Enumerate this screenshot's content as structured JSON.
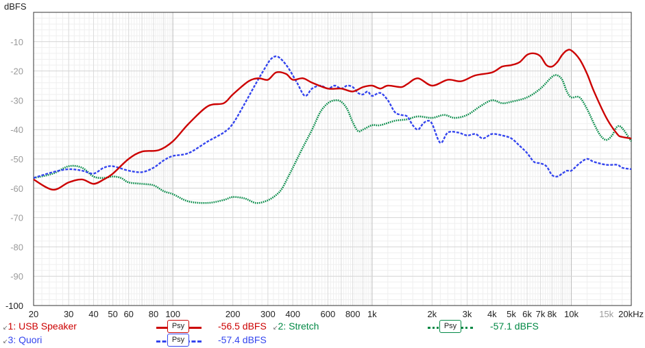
{
  "chart_data": {
    "type": "line",
    "ylabel": "dBFS",
    "ylim": [
      -100,
      0
    ],
    "xlim": [
      20,
      20000
    ],
    "x_scale": "log",
    "grid": true,
    "y_ticks": [
      -10,
      -20,
      -30,
      -40,
      -50,
      -60,
      -70,
      -80,
      -90,
      -100
    ],
    "x_ticks": [
      {
        "value": 20,
        "label": "20"
      },
      {
        "value": 30,
        "label": "30"
      },
      {
        "value": 40,
        "label": "40"
      },
      {
        "value": 50,
        "label": "50"
      },
      {
        "value": 60,
        "label": "60"
      },
      {
        "value": 80,
        "label": "80"
      },
      {
        "value": 100,
        "label": "100"
      },
      {
        "value": 200,
        "label": "200"
      },
      {
        "value": 300,
        "label": "300"
      },
      {
        "value": 400,
        "label": "400"
      },
      {
        "value": 600,
        "label": "600"
      },
      {
        "value": 800,
        "label": "800"
      },
      {
        "value": 1000,
        "label": "1k"
      },
      {
        "value": 2000,
        "label": "2k"
      },
      {
        "value": 3000,
        "label": "3k"
      },
      {
        "value": 4000,
        "label": "4k"
      },
      {
        "value": 5000,
        "label": "5k"
      },
      {
        "value": 6000,
        "label": "6k"
      },
      {
        "value": 7000,
        "label": "7k"
      },
      {
        "value": 8000,
        "label": "8k"
      },
      {
        "value": 10000,
        "label": "10k"
      },
      {
        "value": 15000,
        "label": "15k"
      },
      {
        "value": 20000,
        "label": "20kHz"
      }
    ],
    "series": [
      {
        "name": "1: USB Speaker",
        "color": "#cc0000",
        "style": "solid",
        "psy": "Psy",
        "level": "-56.5 dBFS",
        "points": [
          [
            20,
            -57
          ],
          [
            25,
            -60.5
          ],
          [
            30,
            -58
          ],
          [
            35,
            -57
          ],
          [
            40,
            -58.5
          ],
          [
            45,
            -57
          ],
          [
            50,
            -55
          ],
          [
            60,
            -50
          ],
          [
            70,
            -47.5
          ],
          [
            85,
            -47
          ],
          [
            100,
            -44
          ],
          [
            120,
            -38
          ],
          [
            150,
            -32
          ],
          [
            180,
            -31
          ],
          [
            200,
            -28
          ],
          [
            240,
            -23.5
          ],
          [
            270,
            -22.5
          ],
          [
            300,
            -23
          ],
          [
            330,
            -20.5
          ],
          [
            370,
            -21
          ],
          [
            400,
            -23
          ],
          [
            450,
            -22.5
          ],
          [
            500,
            -24
          ],
          [
            600,
            -26
          ],
          [
            700,
            -26
          ],
          [
            800,
            -27
          ],
          [
            900,
            -25.5
          ],
          [
            1000,
            -25
          ],
          [
            1100,
            -26
          ],
          [
            1200,
            -25
          ],
          [
            1400,
            -25.5
          ],
          [
            1500,
            -24.5
          ],
          [
            1700,
            -22.5
          ],
          [
            2000,
            -25
          ],
          [
            2400,
            -23
          ],
          [
            2800,
            -23.5
          ],
          [
            3300,
            -21.5
          ],
          [
            4000,
            -20.5
          ],
          [
            4500,
            -18.5
          ],
          [
            5000,
            -18
          ],
          [
            5500,
            -17
          ],
          [
            6000,
            -14.5
          ],
          [
            6500,
            -14
          ],
          [
            7000,
            -15
          ],
          [
            7500,
            -18
          ],
          [
            8000,
            -18.5
          ],
          [
            8500,
            -17
          ],
          [
            9000,
            -14.5
          ],
          [
            9500,
            -13
          ],
          [
            10000,
            -13
          ],
          [
            11000,
            -16
          ],
          [
            12000,
            -21
          ],
          [
            13000,
            -27
          ],
          [
            15000,
            -36
          ],
          [
            17000,
            -41.5
          ],
          [
            18000,
            -42.5
          ],
          [
            20000,
            -43
          ]
        ]
      },
      {
        "name": "2: Stretch",
        "color": "#008844",
        "style": "dotted",
        "psy": "Psy",
        "level": "-57.1 dBFS",
        "points": [
          [
            20,
            -56.5
          ],
          [
            25,
            -55
          ],
          [
            30,
            -52.5
          ],
          [
            35,
            -53
          ],
          [
            40,
            -56
          ],
          [
            45,
            -56.5
          ],
          [
            50,
            -56
          ],
          [
            55,
            -56.5
          ],
          [
            60,
            -58
          ],
          [
            70,
            -58.5
          ],
          [
            80,
            -59
          ],
          [
            90,
            -61
          ],
          [
            100,
            -62
          ],
          [
            120,
            -64.5
          ],
          [
            150,
            -65
          ],
          [
            180,
            -64
          ],
          [
            200,
            -63
          ],
          [
            230,
            -63.5
          ],
          [
            260,
            -65
          ],
          [
            290,
            -64.5
          ],
          [
            320,
            -63
          ],
          [
            350,
            -60.5
          ],
          [
            380,
            -56
          ],
          [
            400,
            -53
          ],
          [
            450,
            -46
          ],
          [
            500,
            -40
          ],
          [
            550,
            -34
          ],
          [
            600,
            -31
          ],
          [
            650,
            -30
          ],
          [
            700,
            -30.5
          ],
          [
            750,
            -33
          ],
          [
            800,
            -37.5
          ],
          [
            850,
            -40.5
          ],
          [
            900,
            -40
          ],
          [
            1000,
            -38.5
          ],
          [
            1100,
            -38.5
          ],
          [
            1300,
            -37
          ],
          [
            1500,
            -36.5
          ],
          [
            1700,
            -35.5
          ],
          [
            2000,
            -36
          ],
          [
            2300,
            -35
          ],
          [
            2600,
            -36
          ],
          [
            3000,
            -35
          ],
          [
            3500,
            -32
          ],
          [
            4000,
            -30
          ],
          [
            4500,
            -31
          ],
          [
            5000,
            -30.5
          ],
          [
            6000,
            -29
          ],
          [
            7000,
            -26
          ],
          [
            8000,
            -22
          ],
          [
            8500,
            -21.5
          ],
          [
            9000,
            -23
          ],
          [
            9500,
            -27
          ],
          [
            10000,
            -29
          ],
          [
            11000,
            -29
          ],
          [
            12000,
            -33
          ],
          [
            13000,
            -38
          ],
          [
            14000,
            -42
          ],
          [
            15000,
            -43.5
          ],
          [
            16000,
            -42
          ],
          [
            17000,
            -39
          ],
          [
            18000,
            -39.5
          ],
          [
            20000,
            -44
          ]
        ]
      },
      {
        "name": "3: Quori",
        "color": "#3344ee",
        "style": "dashed",
        "psy": "Psy",
        "level": "-57.4 dBFS",
        "points": [
          [
            20,
            -56.5
          ],
          [
            25,
            -54.5
          ],
          [
            30,
            -53.5
          ],
          [
            35,
            -54
          ],
          [
            40,
            -55
          ],
          [
            45,
            -53
          ],
          [
            50,
            -52.5
          ],
          [
            60,
            -54
          ],
          [
            70,
            -54.5
          ],
          [
            80,
            -53
          ],
          [
            90,
            -50.5
          ],
          [
            100,
            -49
          ],
          [
            120,
            -48
          ],
          [
            150,
            -44
          ],
          [
            180,
            -41
          ],
          [
            200,
            -38
          ],
          [
            230,
            -31
          ],
          [
            260,
            -24.5
          ],
          [
            290,
            -19
          ],
          [
            310,
            -16
          ],
          [
            330,
            -15
          ],
          [
            350,
            -16
          ],
          [
            380,
            -19
          ],
          [
            420,
            -24
          ],
          [
            460,
            -28.5
          ],
          [
            500,
            -26
          ],
          [
            550,
            -25
          ],
          [
            600,
            -26
          ],
          [
            650,
            -25
          ],
          [
            700,
            -26
          ],
          [
            750,
            -25
          ],
          [
            800,
            -25.5
          ],
          [
            850,
            -27.5
          ],
          [
            900,
            -28
          ],
          [
            950,
            -27
          ],
          [
            1000,
            -28.5
          ],
          [
            1100,
            -27.5
          ],
          [
            1200,
            -30
          ],
          [
            1300,
            -34
          ],
          [
            1400,
            -35
          ],
          [
            1500,
            -35.5
          ],
          [
            1600,
            -38.5
          ],
          [
            1700,
            -40
          ],
          [
            1800,
            -38
          ],
          [
            1900,
            -37
          ],
          [
            2000,
            -38
          ],
          [
            2200,
            -44.5
          ],
          [
            2400,
            -41
          ],
          [
            2700,
            -41
          ],
          [
            3000,
            -42
          ],
          [
            3300,
            -41.5
          ],
          [
            3600,
            -43
          ],
          [
            4000,
            -41.5
          ],
          [
            4500,
            -42
          ],
          [
            5000,
            -43
          ],
          [
            5500,
            -45.5
          ],
          [
            6000,
            -48
          ],
          [
            6500,
            -51
          ],
          [
            7000,
            -51.5
          ],
          [
            7500,
            -52.5
          ],
          [
            8000,
            -55.5
          ],
          [
            8500,
            -56
          ],
          [
            9000,
            -55
          ],
          [
            9500,
            -54
          ],
          [
            10000,
            -54
          ],
          [
            11000,
            -51.5
          ],
          [
            12000,
            -50
          ],
          [
            13000,
            -51
          ],
          [
            15000,
            -52
          ],
          [
            17000,
            -52
          ],
          [
            18000,
            -53
          ],
          [
            20000,
            -53.5
          ]
        ]
      }
    ]
  }
}
